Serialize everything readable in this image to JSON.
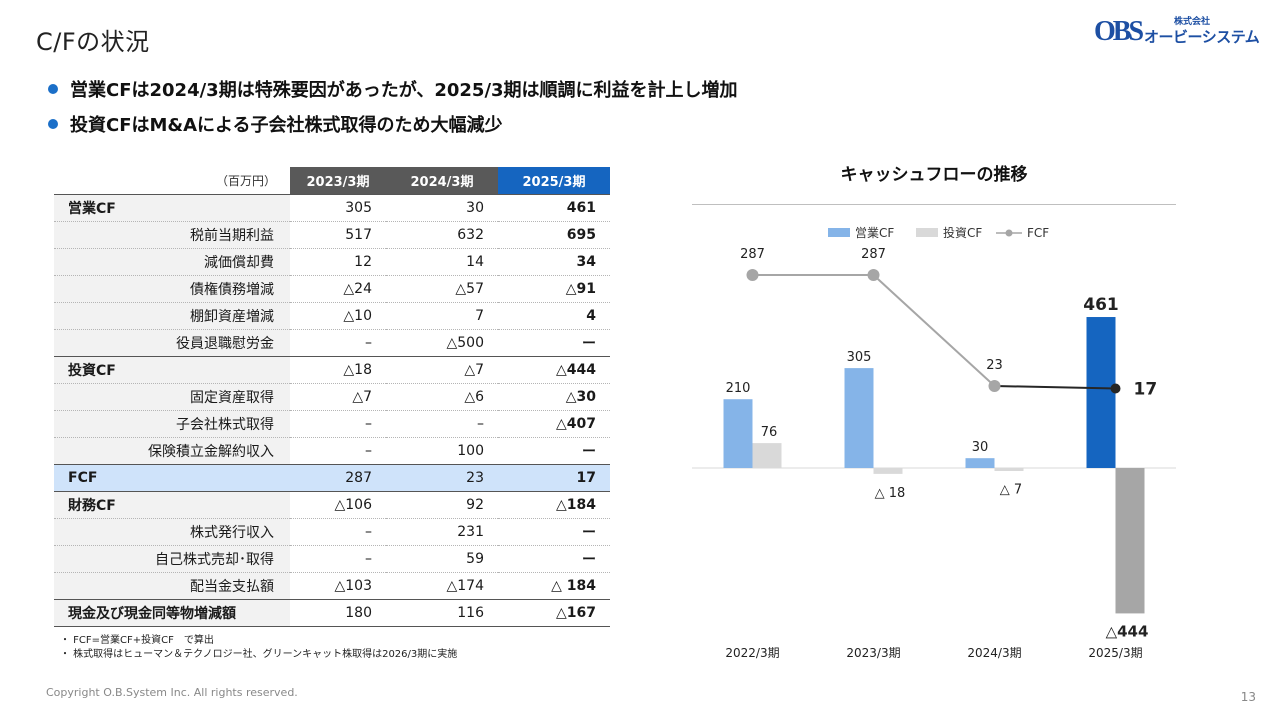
{
  "header": {
    "title": "C/Fの状況",
    "logo_small": "株式会社",
    "logo_mark": "OBS",
    "logo_name": "オービーシステム"
  },
  "bullets": [
    "営業CFは2024/3期は特殊要因があったが、2025/3期は順調に利益を計上し増加",
    "投資CFはM&Aによる子会社株式取得のため大幅減少"
  ],
  "table": {
    "unit": "（百万円）",
    "columns": [
      "2023/3期",
      "2024/3期",
      "2025/3期"
    ],
    "rows": [
      {
        "label": "営業CF",
        "values": [
          "305",
          "30",
          "461"
        ],
        "kind": "sec"
      },
      {
        "label": "税前当期利益",
        "values": [
          "517",
          "632",
          "695"
        ],
        "kind": "sub"
      },
      {
        "label": "減価償却費",
        "values": [
          "12",
          "14",
          "34"
        ],
        "kind": "sub"
      },
      {
        "label": "債権債務増減",
        "values": [
          "△24",
          "△57",
          "△91"
        ],
        "kind": "sub"
      },
      {
        "label": "棚卸資産増減",
        "values": [
          "△10",
          "7",
          "4"
        ],
        "kind": "sub"
      },
      {
        "label": "役員退職慰労金",
        "values": [
          "–",
          "△500",
          "ー"
        ],
        "kind": "sub"
      },
      {
        "label": "投資CF",
        "values": [
          "△18",
          "△7",
          "△444"
        ],
        "kind": "sec"
      },
      {
        "label": "固定資産取得",
        "values": [
          "△7",
          "△6",
          "△30"
        ],
        "kind": "sub"
      },
      {
        "label": "子会社株式取得",
        "values": [
          "–",
          "–",
          "△407"
        ],
        "kind": "sub"
      },
      {
        "label": "保険積立金解約収入",
        "values": [
          "–",
          "100",
          "ー"
        ],
        "kind": "sub"
      },
      {
        "label": "FCF",
        "values": [
          "287",
          "23",
          "17"
        ],
        "kind": "fcf"
      },
      {
        "label": "財務CF",
        "values": [
          "△106",
          "92",
          "△184"
        ],
        "kind": "sec"
      },
      {
        "label": "株式発行収入",
        "values": [
          "–",
          "231",
          "ー"
        ],
        "kind": "sub"
      },
      {
        "label": "自己株式売却･取得",
        "values": [
          "–",
          "59",
          "ー"
        ],
        "kind": "sub"
      },
      {
        "label": "配当金支払額",
        "values": [
          "△103",
          "△174",
          "△ 184"
        ],
        "kind": "sub"
      },
      {
        "label": "現金及び現金同等物増減額",
        "values": [
          "180",
          "116",
          "△167"
        ],
        "kind": "sec last"
      }
    ]
  },
  "notes": [
    "・ FCF=営業CF+投資CF　で算出",
    "・ 株式取得はヒューマン＆テクノロジー社、グリーンキャット株取得は2026/3期に実施"
  ],
  "footer": {
    "copyright": "Copyright O.B.System Inc. All rights reserved.",
    "page": "13"
  },
  "chart_data": {
    "type": "bar",
    "title": "キャッシュフローの推移",
    "categories": [
      "2022/3期",
      "2023/3期",
      "2024/3期",
      "2025/3期"
    ],
    "series": [
      {
        "name": "営業CF",
        "type": "bar",
        "values": [
          210,
          305,
          30,
          461
        ],
        "labels": [
          "210",
          "305",
          "30",
          "461"
        ]
      },
      {
        "name": "投資CF",
        "type": "bar",
        "values": [
          76,
          -18,
          -7,
          -444
        ],
        "labels": [
          "76",
          "△ 18",
          "△ 7",
          "△444"
        ]
      },
      {
        "name": "FCF",
        "type": "line",
        "values": [
          287,
          287,
          23,
          17
        ],
        "labels": [
          "287",
          "287",
          "23",
          "17"
        ]
      }
    ],
    "legend": "top",
    "grid": false,
    "colors": {
      "op_cf": "#85b4e8",
      "op_cf_highlight": "#1565c0",
      "inv_cf": "#d9d9d9",
      "inv_cf_highlight": "#a6a6a6",
      "fcf": "#a6a6a6",
      "fcf_highlight": "#262626"
    }
  }
}
